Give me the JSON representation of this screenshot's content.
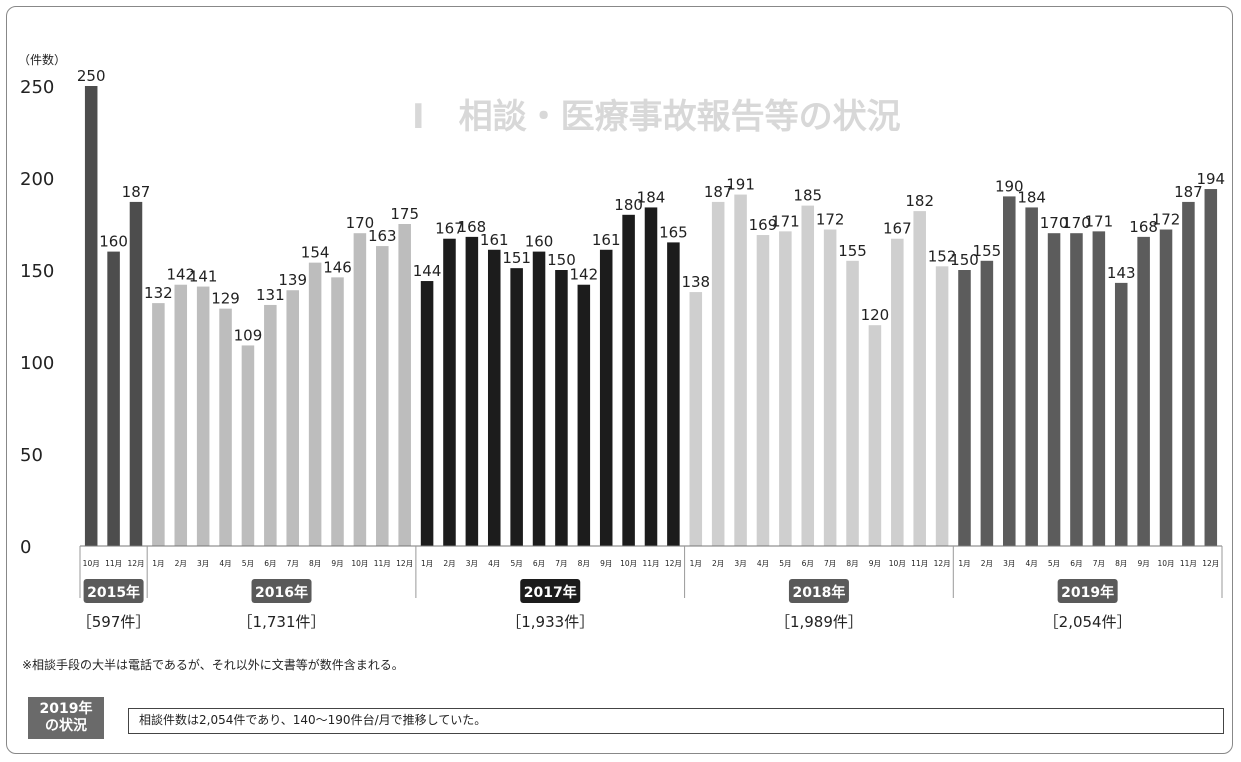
{
  "chart_data": {
    "type": "bar",
    "unit_label": "（件数）",
    "ylim": [
      0,
      250
    ],
    "yticks": [
      0,
      50,
      100,
      150,
      200,
      250
    ],
    "grid": false,
    "groups": [
      {
        "year_label": "2015年",
        "total_label": "［597件］",
        "color": "#4d4d4d",
        "months": [
          "10月",
          "11月",
          "12月"
        ],
        "values": [
          250,
          160,
          187
        ]
      },
      {
        "year_label": "2016年",
        "total_label": "［1,731件］",
        "color": "#bdbdbd",
        "months": [
          "1月",
          "2月",
          "3月",
          "4月",
          "5月",
          "6月",
          "7月",
          "8月",
          "9月",
          "10月",
          "11月",
          "12月"
        ],
        "values": [
          132,
          142,
          141,
          129,
          109,
          131,
          139,
          154,
          146,
          170,
          163,
          175
        ]
      },
      {
        "year_label": "2017年",
        "total_label": "［1,933件］",
        "color": "#1c1c1c",
        "months": [
          "1月",
          "2月",
          "3月",
          "4月",
          "5月",
          "6月",
          "7月",
          "8月",
          "9月",
          "10月",
          "11月",
          "12月"
        ],
        "values": [
          144,
          167,
          168,
          161,
          151,
          160,
          150,
          142,
          161,
          180,
          184,
          165
        ]
      },
      {
        "year_label": "2018年",
        "total_label": "［1,989件］",
        "color": "#cfcfcf",
        "months": [
          "1月",
          "2月",
          "3月",
          "4月",
          "5月",
          "6月",
          "7月",
          "8月",
          "9月",
          "10月",
          "11月",
          "12月"
        ],
        "values": [
          138,
          187,
          191,
          169,
          171,
          185,
          172,
          155,
          120,
          167,
          182,
          152
        ]
      },
      {
        "year_label": "2019年",
        "total_label": "［2,054件］",
        "color": "#5c5c5c",
        "months": [
          "1月",
          "2月",
          "3月",
          "4月",
          "5月",
          "6月",
          "7月",
          "8月",
          "9月",
          "10月",
          "11月",
          "12月"
        ],
        "values": [
          150,
          155,
          190,
          184,
          170,
          170,
          171,
          143,
          168,
          172,
          187,
          194
        ]
      }
    ]
  },
  "background_title": "Ⅰ　相談・医療事故報告等の状況",
  "footnote": "※相談手段の大半は電話であるが、それ以外に文書等が数件含まれる。",
  "status": {
    "badge_line1": "2019年",
    "badge_line2": "の状況",
    "text": "相談件数は2,054件であり、140～190件台/月で推移していた。"
  },
  "colors": {
    "frame": "#888888",
    "badge_bg": "#6a6a6a"
  }
}
